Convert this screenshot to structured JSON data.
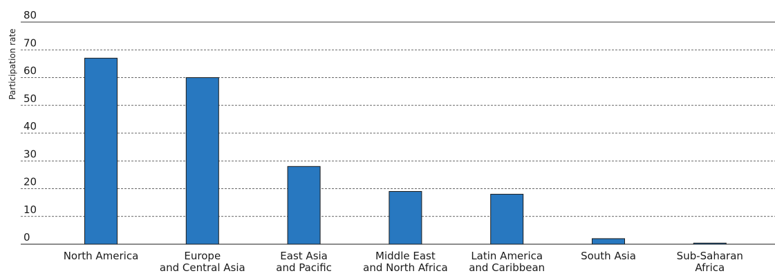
{
  "chart_data": {
    "type": "bar",
    "title": "",
    "xlabel": "",
    "ylabel": "Participation rate",
    "ylim": [
      0,
      80
    ],
    "yticks": [
      "0",
      "10",
      "20",
      "30",
      "40",
      "50",
      "60",
      "70",
      "80"
    ],
    "grid": true,
    "categories": [
      [
        "North America"
      ],
      [
        "Europe",
        "and Central Asia"
      ],
      [
        "East Asia",
        "and Pacific"
      ],
      [
        "Middle East",
        "and North Africa"
      ],
      [
        "Latin America",
        "and Caribbean"
      ],
      [
        "South Asia"
      ],
      [
        "Sub-Saharan",
        "Africa"
      ]
    ],
    "values": [
      67,
      60,
      28,
      19,
      18,
      2,
      0.4
    ],
    "bar_color": "#2878c0",
    "bar_edge_color": "#1a1a1a",
    "grid_color": "#333333"
  }
}
